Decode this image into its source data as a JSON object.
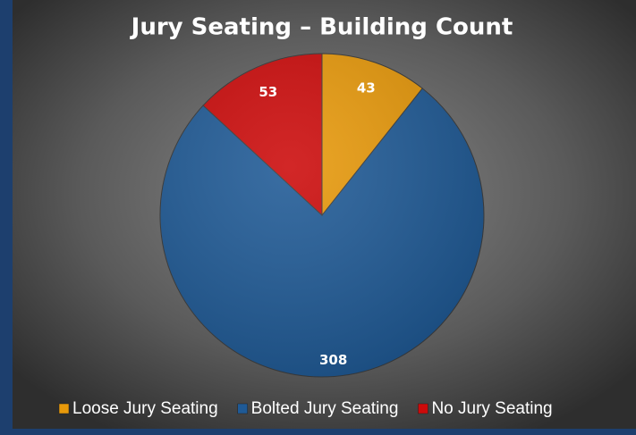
{
  "chart_data": {
    "type": "pie",
    "title": "Jury Seating – Building Count",
    "categories": [
      "Loose Jury Seating",
      "Bolted Jury Seating",
      "No Jury Seating"
    ],
    "values": [
      43,
      308,
      53
    ],
    "colors": [
      "#e8990a",
      "#1f5a96",
      "#cc0a0a"
    ],
    "legend": "bottom"
  }
}
